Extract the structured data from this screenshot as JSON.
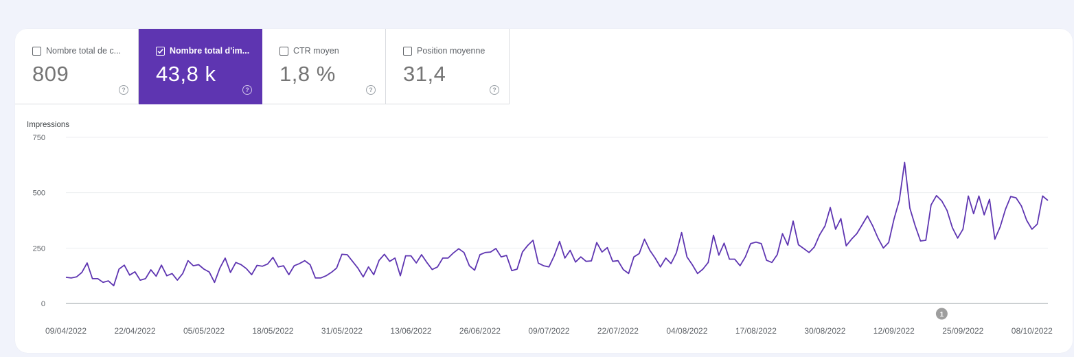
{
  "tabs": [
    {
      "label": "Nombre total de c...",
      "value": "809",
      "checked": false
    },
    {
      "label": "Nombre total d'im...",
      "value": "43,8 k",
      "checked": true
    },
    {
      "label": "CTR moyen",
      "value": "1,8 %",
      "checked": false
    },
    {
      "label": "Position moyenne",
      "value": "31,4",
      "checked": false
    }
  ],
  "help_glyph": "?",
  "colors": {
    "accent": "#5e35b1",
    "line": "#5e35b1",
    "annotation": "#9e9e9e"
  },
  "chart_data": {
    "type": "line",
    "ylabel": "Impressions",
    "ylim": [
      0,
      750
    ],
    "yticks": [
      "0",
      "250",
      "500",
      "750"
    ],
    "xtick_labels": [
      "09/04/2022",
      "22/04/2022",
      "05/05/2022",
      "18/05/2022",
      "31/05/2022",
      "13/06/2022",
      "26/06/2022",
      "09/07/2022",
      "22/07/2022",
      "04/08/2022",
      "17/08/2022",
      "30/08/2022",
      "12/09/2022",
      "25/09/2022",
      "08/10/2022"
    ],
    "grid": true,
    "annotation": {
      "label": "1",
      "date": "21/09/2022"
    },
    "series": [
      {
        "start": "09/04/2022",
        "values": [
          118,
          115,
          120,
          140,
          183,
          112,
          112,
          95,
          102,
          80,
          155,
          173,
          128,
          143,
          105,
          112,
          152,
          123,
          173,
          125,
          135,
          105,
          135,
          193,
          170,
          175,
          155,
          142,
          95,
          160,
          205,
          140,
          185,
          175,
          157,
          130,
          172,
          168,
          178,
          208,
          165,
          170,
          130,
          170,
          180,
          193,
          175,
          115,
          115,
          125,
          140,
          160,
          222,
          220,
          190,
          160,
          120,
          165,
          130,
          195,
          222,
          190,
          205,
          125,
          215,
          215,
          183,
          220,
          185,
          153,
          165,
          205,
          205,
          228,
          247,
          230,
          170,
          150,
          220,
          230,
          232,
          248,
          210,
          217,
          148,
          155,
          232,
          262,
          285,
          182,
          170,
          165,
          215,
          280,
          205,
          240,
          187,
          210,
          190,
          192,
          275,
          232,
          252,
          190,
          193,
          153,
          135,
          210,
          225,
          290,
          240,
          205,
          165,
          205,
          180,
          228,
          320,
          210,
          175,
          135,
          155,
          185,
          308,
          218,
          272,
          200,
          200,
          170,
          210,
          270,
          277,
          270,
          195,
          185,
          220,
          315,
          263,
          372,
          265,
          248,
          230,
          255,
          310,
          350,
          433,
          335,
          383,
          260,
          290,
          315,
          355,
          395,
          350,
          295,
          250,
          275,
          380,
          465,
          637,
          430,
          350,
          282,
          285,
          445,
          487,
          463,
          420,
          342,
          295,
          335,
          485,
          405,
          485,
          400,
          470,
          290,
          345,
          425,
          483,
          477,
          440,
          375,
          335,
          358,
          485,
          465
        ]
      }
    ]
  }
}
